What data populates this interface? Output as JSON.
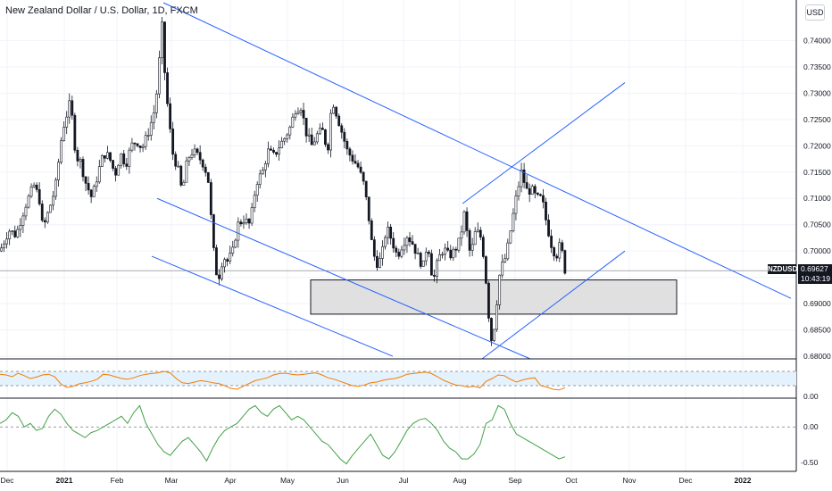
{
  "header": {
    "title": "New Zealand Dollar / U.S. Dollar, 1D, FXCM",
    "currency": "USD"
  },
  "price_tag": {
    "symbol": "NZDUSD",
    "price": "0.69627",
    "countdown": "10:43:19"
  },
  "colors": {
    "up": "#ffffff",
    "down": "#131722",
    "trend": "#2962ff",
    "zone": "#e0e0e0",
    "rsi": "#f57c00",
    "rsi_band": "#e3f2fd",
    "osc": "#43a047",
    "grid": "#f0f3fa"
  },
  "chart_data": [
    {
      "type": "candlestick",
      "title": "New Zealand Dollar / U.S. Dollar, 1D, FXCM",
      "ylim": [
        0.6795,
        0.7472
      ],
      "y_ticks": [
        "0.74000",
        "0.73500",
        "0.73000",
        "0.72500",
        "0.72000",
        "0.71500",
        "0.71000",
        "0.70500",
        "0.70000",
        "0.69500",
        "0.69000",
        "0.68500",
        "0.68000"
      ],
      "x_ticks": [
        "Dec",
        "2021",
        "Feb",
        "Mar",
        "Apr",
        "May",
        "Jun",
        "Jul",
        "Aug",
        "Sep",
        "Oct",
        "Nov",
        "Dec",
        "2022"
      ],
      "last_price": 0.69627,
      "series": [
        {
          "name": "NZDUSD",
          "anchors": [
            [
              0,
              0.7
            ],
            [
              10,
              0.704
            ],
            [
              18,
              0.703
            ],
            [
              28,
              0.7085
            ],
            [
              38,
              0.7125
            ],
            [
              44,
              0.71
            ],
            [
              48,
              0.704
            ],
            [
              55,
              0.708
            ],
            [
              62,
              0.712
            ],
            [
              70,
              0.723
            ],
            [
              79,
              0.7285
            ],
            [
              85,
              0.718
            ],
            [
              90,
              0.717
            ],
            [
              96,
              0.713
            ],
            [
              103,
              0.71
            ],
            [
              110,
              0.715
            ],
            [
              116,
              0.7185
            ],
            [
              122,
              0.718
            ],
            [
              129,
              0.7145
            ],
            [
              135,
              0.7185
            ],
            [
              141,
              0.7165
            ],
            [
              147,
              0.72
            ],
            [
              153,
              0.721
            ],
            [
              159,
              0.7195
            ],
            [
              165,
              0.722
            ],
            [
              172,
              0.726
            ],
            [
              177,
              0.732
            ],
            [
              181,
              0.744
            ],
            [
              184,
              0.735
            ],
            [
              189,
              0.725
            ],
            [
              194,
              0.718
            ],
            [
              199,
              0.716
            ],
            [
              204,
              0.711
            ],
            [
              210,
              0.7175
            ],
            [
              216,
              0.719
            ],
            [
              222,
              0.718
            ],
            [
              228,
              0.7165
            ],
            [
              233,
              0.714
            ],
            [
              237,
              0.705
            ],
            [
              241,
              0.6965
            ],
            [
              245,
              0.695
            ],
            [
              250,
              0.699
            ],
            [
              255,
              0.698
            ],
            [
              261,
              0.7
            ],
            [
              266,
              0.705
            ],
            [
              273,
              0.706
            ],
            [
              280,
              0.705
            ],
            [
              287,
              0.713
            ],
            [
              294,
              0.715
            ],
            [
              300,
              0.719
            ],
            [
              307,
              0.718
            ],
            [
              313,
              0.72
            ],
            [
              319,
              0.7215
            ],
            [
              325,
              0.7235
            ],
            [
              331,
              0.727
            ],
            [
              337,
              0.7275
            ],
            [
              343,
              0.7225
            ],
            [
              349,
              0.72
            ],
            [
              355,
              0.722
            ],
            [
              361,
              0.723
            ],
            [
              367,
              0.719
            ],
            [
              372,
              0.729
            ],
            [
              378,
              0.7255
            ],
            [
              384,
              0.722
            ],
            [
              389,
              0.719
            ],
            [
              395,
              0.7175
            ],
            [
              401,
              0.716
            ],
            [
              407,
              0.713
            ],
            [
              412,
              0.708
            ],
            [
              416,
              0.702
            ],
            [
              421,
              0.6975
            ],
            [
              427,
              0.6985
            ],
            [
              433,
              0.7045
            ],
            [
              439,
              0.702
            ],
            [
              445,
              0.699
            ],
            [
              450,
              0.701
            ],
            [
              456,
              0.703
            ],
            [
              462,
              0.7015
            ],
            [
              468,
              0.699
            ],
            [
              474,
              0.697
            ],
            [
              479,
              0.702
            ],
            [
              485,
              0.694
            ],
            [
              491,
              0.6985
            ],
            [
              497,
              0.7005
            ],
            [
              503,
              0.699
            ],
            [
              509,
              0.7
            ],
            [
              515,
              0.702
            ],
            [
              520,
              0.707
            ],
            [
              527,
              0.699
            ],
            [
              533,
              0.704
            ],
            [
              539,
              0.7025
            ],
            [
              543,
              0.6975
            ],
            [
              547,
              0.6885
            ],
            [
              551,
              0.6825
            ],
            [
              555,
              0.6875
            ],
            [
              559,
              0.695
            ],
            [
              563,
              0.6975
            ],
            [
              567,
              0.699
            ],
            [
              572,
              0.704
            ],
            [
              578,
              0.71
            ],
            [
              584,
              0.715
            ],
            [
              590,
              0.7115
            ],
            [
              596,
              0.7115
            ],
            [
              601,
              0.71
            ],
            [
              607,
              0.71
            ],
            [
              612,
              0.7055
            ],
            [
              618,
              0.701
            ],
            [
              623,
              0.699
            ],
            [
              628,
              0.7015
            ],
            [
              633,
              0.6963
            ]
          ]
        }
      ],
      "trendlines": [
        {
          "name": "upper channel",
          "points": [
            [
              183,
              0.7472
            ],
            [
              886,
              0.691
            ]
          ]
        },
        {
          "name": "lower channel",
          "points": [
            [
              176,
              0.71
            ],
            [
              594,
              0.6795
            ]
          ]
        },
        {
          "name": "lower channel 2",
          "points": [
            [
              170,
              0.699
            ],
            [
              440,
              0.68
            ]
          ]
        },
        {
          "name": "rising channel top",
          "points": [
            [
              518,
              0.709
            ],
            [
              700,
              0.732
            ]
          ]
        },
        {
          "name": "rising channel bottom",
          "points": [
            [
              540,
              0.6795
            ],
            [
              700,
              0.7
            ]
          ]
        }
      ],
      "zone": {
        "x": [
          348,
          758
        ],
        "y": [
          0.688,
          0.6945
        ]
      }
    },
    {
      "type": "line",
      "title": "",
      "ylim": [
        0,
        100
      ],
      "y_ticks": [
        "0.00"
      ],
      "band": [
        30,
        70
      ],
      "series": [
        {
          "values": [
            62,
            60,
            55,
            65,
            58,
            50,
            54,
            60,
            62,
            55,
            35,
            25,
            28,
            35,
            38,
            42,
            48,
            62,
            60,
            55,
            50,
            48,
            52,
            58,
            62,
            64,
            66,
            70,
            66,
            50,
            38,
            36,
            40,
            44,
            42,
            38,
            36,
            30,
            22,
            20,
            28,
            36,
            44,
            48,
            52,
            60,
            64,
            65,
            62,
            60,
            62,
            64,
            66,
            60,
            52,
            48,
            42,
            36,
            30,
            28,
            32,
            38,
            40,
            45,
            48,
            50,
            55,
            62,
            64,
            66,
            68,
            64,
            55,
            45,
            38,
            32,
            30,
            26,
            28,
            24,
            42,
            50,
            60,
            58,
            48,
            40,
            46,
            50,
            52,
            30,
            26,
            20,
            18,
            24
          ]
        }
      ]
    },
    {
      "type": "line",
      "title": "",
      "ylim": [
        -0.6,
        0.38
      ],
      "y_ticks": [
        "0.00",
        "-0.50"
      ],
      "series": [
        {
          "values": [
            0.05,
            0.1,
            0.2,
            0.15,
            0.0,
            0.05,
            -0.05,
            -0.02,
            0.15,
            0.25,
            0.18,
            0.05,
            -0.05,
            -0.1,
            -0.15,
            -0.08,
            -0.05,
            0.0,
            0.05,
            0.1,
            0.15,
            0.05,
            0.2,
            0.3,
            0.05,
            -0.1,
            -0.25,
            -0.35,
            -0.4,
            -0.3,
            -0.2,
            -0.15,
            -0.25,
            -0.35,
            -0.48,
            -0.3,
            -0.15,
            -0.05,
            0.0,
            0.05,
            0.15,
            0.25,
            0.3,
            0.2,
            0.15,
            0.25,
            0.3,
            0.2,
            0.1,
            0.15,
            0.1,
            0.0,
            -0.1,
            -0.2,
            -0.25,
            -0.35,
            -0.45,
            -0.52,
            -0.4,
            -0.3,
            -0.2,
            -0.1,
            -0.25,
            -0.4,
            -0.45,
            -0.35,
            -0.2,
            -0.05,
            0.05,
            0.1,
            0.12,
            0.05,
            -0.05,
            -0.2,
            -0.3,
            -0.35,
            -0.45,
            -0.45,
            -0.38,
            -0.25,
            0.05,
            0.1,
            0.3,
            0.25,
            0.05,
            -0.1,
            -0.15,
            -0.2,
            -0.25,
            -0.3,
            -0.35,
            -0.4,
            -0.45,
            -0.42
          ]
        }
      ]
    }
  ]
}
